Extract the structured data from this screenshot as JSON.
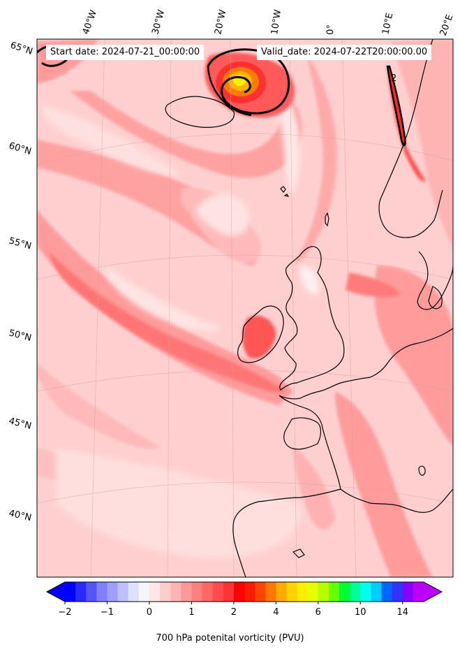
{
  "header": {
    "start_date": "Start date: 2024-07-21_00:00:00",
    "valid_date": "Valid_date: 2024-07-22T20:00:00.00"
  },
  "map": {
    "projection": "conic",
    "region": "North Atlantic / Western Europe",
    "lon_labels": [
      "40°W",
      "30°W",
      "20°W",
      "10°W",
      "0°",
      "10°E",
      "20°E"
    ],
    "lat_labels": [
      "65°N",
      "60°N",
      "55°N",
      "50°N",
      "45°N",
      "40°N"
    ],
    "field_base_color": "#ffcfcf",
    "contour_label": "2"
  },
  "colorbar": {
    "title": "700 hPa potenital vorticity (PVU)",
    "tick_labels": [
      "−2",
      "−1",
      "0",
      "1",
      "2",
      "4",
      "6",
      "10",
      "14"
    ],
    "colors": [
      "#0000ff",
      "#2a2aff",
      "#5555ff",
      "#7f7fff",
      "#9f9fff",
      "#bfbfff",
      "#dfdfff",
      "#f5f5ff",
      "#ffe6e6",
      "#ffcccc",
      "#ffb3b3",
      "#ff9999",
      "#ff7f7f",
      "#ff6666",
      "#ff4c4c",
      "#ff3333",
      "#ff0000",
      "#ff1a00",
      "#ff4400",
      "#ff7700",
      "#ffaa00",
      "#ffd200",
      "#ffee00",
      "#e6ff00",
      "#b3ff00",
      "#66ff00",
      "#00ff33",
      "#00ff99",
      "#00ffee",
      "#00ccff",
      "#0066ff",
      "#3333ff",
      "#8800ff",
      "#bb00ff"
    ]
  }
}
